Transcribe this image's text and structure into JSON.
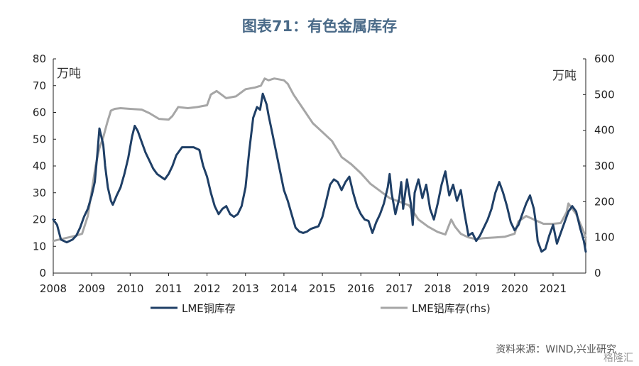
{
  "chart_data": {
    "type": "line",
    "title": "图表71：有色金属库存",
    "y_left_unit": "万吨",
    "y_right_unit": "万吨",
    "ylim_left": [
      0,
      80
    ],
    "ylim_right": [
      0,
      600
    ],
    "yticks_left": [
      "0",
      "10",
      "20",
      "30",
      "40",
      "50",
      "60",
      "70",
      "80"
    ],
    "yticks_right": [
      "0",
      "100",
      "200",
      "300",
      "400",
      "500",
      "600"
    ],
    "x_range": [
      2008,
      2021.85
    ],
    "xticks": [
      "2008",
      "2009",
      "2010",
      "2011",
      "2012",
      "2013",
      "2014",
      "2015",
      "2016",
      "2017",
      "2018",
      "2019",
      "2020",
      "2021"
    ],
    "grid": false,
    "legend_position": "bottom",
    "colors": {
      "copper": "#1f3f66",
      "aluminum": "#a6a6a6",
      "title": "#4a6a88"
    },
    "series": [
      {
        "name": "LME铜库存",
        "axis": "left",
        "points": [
          [
            2008.0,
            20
          ],
          [
            2008.1,
            18
          ],
          [
            2008.2,
            12.5
          ],
          [
            2008.35,
            11.5
          ],
          [
            2008.5,
            12.5
          ],
          [
            2008.6,
            14
          ],
          [
            2008.7,
            17
          ],
          [
            2008.8,
            21
          ],
          [
            2008.9,
            24
          ],
          [
            2009.0,
            29
          ],
          [
            2009.08,
            34
          ],
          [
            2009.15,
            45
          ],
          [
            2009.2,
            54
          ],
          [
            2009.25,
            51
          ],
          [
            2009.3,
            48
          ],
          [
            2009.35,
            40
          ],
          [
            2009.42,
            32
          ],
          [
            2009.5,
            27
          ],
          [
            2009.55,
            25.5
          ],
          [
            2009.65,
            29
          ],
          [
            2009.75,
            32
          ],
          [
            2009.85,
            37
          ],
          [
            2009.95,
            43
          ],
          [
            2010.05,
            51
          ],
          [
            2010.12,
            55
          ],
          [
            2010.2,
            53
          ],
          [
            2010.3,
            49
          ],
          [
            2010.4,
            45
          ],
          [
            2010.5,
            42
          ],
          [
            2010.6,
            39
          ],
          [
            2010.7,
            37
          ],
          [
            2010.8,
            36
          ],
          [
            2010.9,
            35
          ],
          [
            2011.0,
            37
          ],
          [
            2011.1,
            40
          ],
          [
            2011.2,
            44
          ],
          [
            2011.35,
            47
          ],
          [
            2011.5,
            47
          ],
          [
            2011.65,
            47
          ],
          [
            2011.8,
            46
          ],
          [
            2011.9,
            40
          ],
          [
            2012.0,
            36
          ],
          [
            2012.1,
            30
          ],
          [
            2012.2,
            25
          ],
          [
            2012.3,
            22
          ],
          [
            2012.4,
            24
          ],
          [
            2012.5,
            25
          ],
          [
            2012.6,
            22
          ],
          [
            2012.7,
            21
          ],
          [
            2012.8,
            22
          ],
          [
            2012.9,
            25
          ],
          [
            2013.0,
            32
          ],
          [
            2013.1,
            46
          ],
          [
            2013.2,
            58
          ],
          [
            2013.3,
            62
          ],
          [
            2013.38,
            61
          ],
          [
            2013.45,
            67
          ],
          [
            2013.5,
            65
          ],
          [
            2013.55,
            63
          ],
          [
            2013.6,
            59
          ],
          [
            2013.7,
            52
          ],
          [
            2013.8,
            45
          ],
          [
            2013.9,
            38
          ],
          [
            2014.0,
            31
          ],
          [
            2014.1,
            27
          ],
          [
            2014.2,
            22
          ],
          [
            2014.3,
            17
          ],
          [
            2014.4,
            15.5
          ],
          [
            2014.5,
            15
          ],
          [
            2014.6,
            15.5
          ],
          [
            2014.7,
            16.5
          ],
          [
            2014.8,
            17
          ],
          [
            2014.9,
            17.5
          ],
          [
            2015.0,
            21
          ],
          [
            2015.1,
            27
          ],
          [
            2015.2,
            33
          ],
          [
            2015.3,
            35
          ],
          [
            2015.4,
            34
          ],
          [
            2015.5,
            31
          ],
          [
            2015.6,
            34
          ],
          [
            2015.7,
            36
          ],
          [
            2015.8,
            30
          ],
          [
            2015.9,
            25
          ],
          [
            2016.0,
            22
          ],
          [
            2016.1,
            20
          ],
          [
            2016.2,
            19.5
          ],
          [
            2016.3,
            15
          ],
          [
            2016.4,
            19
          ],
          [
            2016.5,
            22
          ],
          [
            2016.6,
            26
          ],
          [
            2016.7,
            32
          ],
          [
            2016.75,
            37
          ],
          [
            2016.8,
            30
          ],
          [
            2016.9,
            22
          ],
          [
            2017.0,
            28
          ],
          [
            2017.05,
            34
          ],
          [
            2017.1,
            24
          ],
          [
            2017.2,
            35
          ],
          [
            2017.3,
            26
          ],
          [
            2017.35,
            18
          ],
          [
            2017.4,
            30
          ],
          [
            2017.5,
            35
          ],
          [
            2017.6,
            28
          ],
          [
            2017.7,
            33
          ],
          [
            2017.8,
            24
          ],
          [
            2017.9,
            20
          ],
          [
            2018.0,
            26
          ],
          [
            2018.1,
            33
          ],
          [
            2018.2,
            38
          ],
          [
            2018.25,
            33
          ],
          [
            2018.3,
            29
          ],
          [
            2018.4,
            33
          ],
          [
            2018.5,
            27
          ],
          [
            2018.6,
            31
          ],
          [
            2018.7,
            22
          ],
          [
            2018.8,
            14
          ],
          [
            2018.9,
            15
          ],
          [
            2019.0,
            12
          ],
          [
            2019.1,
            14
          ],
          [
            2019.2,
            17
          ],
          [
            2019.3,
            20
          ],
          [
            2019.4,
            24
          ],
          [
            2019.5,
            30
          ],
          [
            2019.6,
            34
          ],
          [
            2019.7,
            30
          ],
          [
            2019.8,
            25
          ],
          [
            2019.9,
            19
          ],
          [
            2020.0,
            16
          ],
          [
            2020.1,
            18
          ],
          [
            2020.2,
            22
          ],
          [
            2020.3,
            26
          ],
          [
            2020.4,
            29
          ],
          [
            2020.5,
            24
          ],
          [
            2020.55,
            19
          ],
          [
            2020.6,
            12
          ],
          [
            2020.7,
            8
          ],
          [
            2020.8,
            9
          ],
          [
            2020.9,
            14
          ],
          [
            2021.0,
            18
          ],
          [
            2021.1,
            11
          ],
          [
            2021.2,
            15
          ],
          [
            2021.3,
            19
          ],
          [
            2021.4,
            23
          ],
          [
            2021.5,
            25
          ],
          [
            2021.6,
            23
          ],
          [
            2021.7,
            17
          ],
          [
            2021.8,
            12
          ],
          [
            2021.85,
            8
          ]
        ]
      },
      {
        "name": "LME铝库存(rhs)",
        "axis": "right",
        "points": [
          [
            2008.0,
            90
          ],
          [
            2008.2,
            95
          ],
          [
            2008.4,
            100
          ],
          [
            2008.6,
            105
          ],
          [
            2008.75,
            110
          ],
          [
            2008.9,
            160
          ],
          [
            2009.0,
            230
          ],
          [
            2009.1,
            300
          ],
          [
            2009.2,
            350
          ],
          [
            2009.3,
            380
          ],
          [
            2009.4,
            420
          ],
          [
            2009.5,
            455
          ],
          [
            2009.6,
            460
          ],
          [
            2009.75,
            462
          ],
          [
            2010.0,
            460
          ],
          [
            2010.3,
            458
          ],
          [
            2010.5,
            448
          ],
          [
            2010.75,
            432
          ],
          [
            2011.0,
            430
          ],
          [
            2011.1,
            440
          ],
          [
            2011.25,
            465
          ],
          [
            2011.5,
            462
          ],
          [
            2011.75,
            465
          ],
          [
            2012.0,
            470
          ],
          [
            2012.1,
            500
          ],
          [
            2012.25,
            510
          ],
          [
            2012.5,
            490
          ],
          [
            2012.75,
            495
          ],
          [
            2013.0,
            515
          ],
          [
            2013.25,
            520
          ],
          [
            2013.4,
            525
          ],
          [
            2013.5,
            545
          ],
          [
            2013.6,
            540
          ],
          [
            2013.75,
            545
          ],
          [
            2014.0,
            540
          ],
          [
            2014.1,
            530
          ],
          [
            2014.25,
            500
          ],
          [
            2014.5,
            460
          ],
          [
            2014.75,
            420
          ],
          [
            2015.0,
            395
          ],
          [
            2015.25,
            370
          ],
          [
            2015.5,
            325
          ],
          [
            2015.75,
            305
          ],
          [
            2016.0,
            280
          ],
          [
            2016.25,
            250
          ],
          [
            2016.5,
            230
          ],
          [
            2016.75,
            210
          ],
          [
            2017.0,
            200
          ],
          [
            2017.25,
            190
          ],
          [
            2017.5,
            150
          ],
          [
            2017.75,
            130
          ],
          [
            2018.0,
            115
          ],
          [
            2018.2,
            108
          ],
          [
            2018.35,
            150
          ],
          [
            2018.45,
            130
          ],
          [
            2018.6,
            110
          ],
          [
            2018.8,
            100
          ],
          [
            2019.0,
            95
          ],
          [
            2019.2,
            98
          ],
          [
            2019.5,
            100
          ],
          [
            2019.75,
            102
          ],
          [
            2020.0,
            110
          ],
          [
            2020.1,
            145
          ],
          [
            2020.2,
            152
          ],
          [
            2020.3,
            160
          ],
          [
            2020.5,
            150
          ],
          [
            2020.75,
            138
          ],
          [
            2021.0,
            138
          ],
          [
            2021.2,
            140
          ],
          [
            2021.35,
            170
          ],
          [
            2021.4,
            195
          ],
          [
            2021.5,
            180
          ],
          [
            2021.6,
            165
          ],
          [
            2021.7,
            140
          ],
          [
            2021.8,
            115
          ],
          [
            2021.85,
            100
          ]
        ]
      }
    ],
    "source": "资料来源：WIND,兴业研究",
    "watermark": "格隆汇"
  }
}
